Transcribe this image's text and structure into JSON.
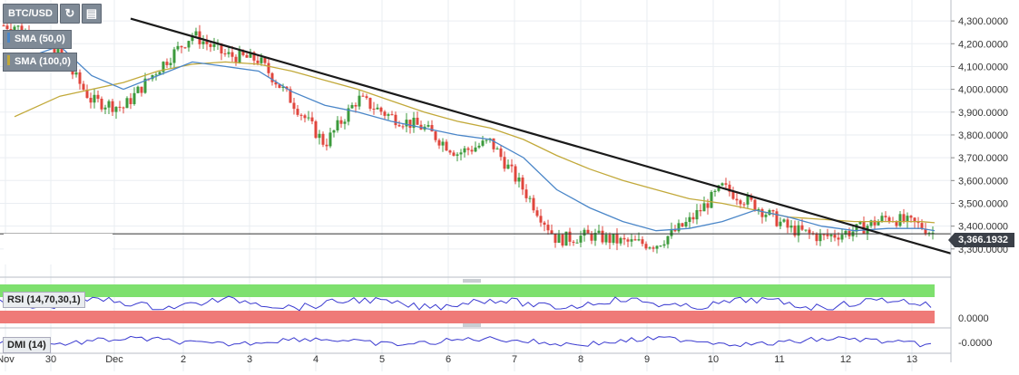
{
  "toolbar": {
    "symbol": "BTC/USD",
    "refresh_icon": "refresh-icon",
    "calendar_icon": "calendar-icon"
  },
  "indicators": {
    "sma50": {
      "label": "SMA (50,0)",
      "color": "#4a86c8"
    },
    "sma100": {
      "label": "SMA (100,0)",
      "color": "#c2a93a"
    }
  },
  "price_label": "3,366.1932",
  "rsi_label": "RSI (14,70,30,1)",
  "dmi_label": "DMI (14)",
  "colors": {
    "up": "#3c9a3c",
    "down": "#e0463d",
    "trendline": "#1a1a1a",
    "rsi_overbought": "#7ee06e",
    "rsi_oversold": "#ef7a78",
    "osc_line": "#3a3ad0"
  },
  "chart_data": {
    "type": "line",
    "title": "BTC/USD",
    "x_tick_labels": [
      "Nov",
      "30",
      "Dec",
      "2",
      "3",
      "4",
      "5",
      "6",
      "7",
      "8",
      "9",
      "10",
      "11",
      "12",
      "13"
    ],
    "y_tick_labels": [
      "4,300.0000",
      "4,200.0000",
      "4,100.0000",
      "4,000.0000",
      "3,900.0000",
      "3,800.0000",
      "3,700.0000",
      "3,600.0000",
      "3,500.0000",
      "3,400.0000",
      "3,300.0000"
    ],
    "ylim": [
      3200,
      4360
    ],
    "current_price": 3366.1932,
    "close_series": [
      [
        "Nov",
        4280
      ],
      [
        "30",
        4150
      ],
      [
        "30",
        3950
      ],
      [
        "Dec",
        3920
      ],
      [
        "Dec",
        4090
      ],
      [
        "2",
        4240
      ],
      [
        "2",
        4150
      ],
      [
        "3",
        4130
      ],
      [
        "3",
        3950
      ],
      [
        "4",
        3760
      ],
      [
        "4",
        3960
      ],
      [
        "5",
        3880
      ],
      [
        "5",
        3830
      ],
      [
        "6",
        3720
      ],
      [
        "6",
        3770
      ],
      [
        "7",
        3560
      ],
      [
        "7",
        3340
      ],
      [
        "8",
        3360
      ],
      [
        "8",
        3330
      ],
      [
        "9",
        3320
      ],
      [
        "9",
        3420
      ],
      [
        "10",
        3570
      ],
      [
        "10",
        3490
      ],
      [
        "11",
        3390
      ],
      [
        "11",
        3350
      ],
      [
        "12",
        3380
      ],
      [
        "12",
        3440
      ],
      [
        "13",
        3400
      ],
      [
        "13",
        3366
      ]
    ],
    "series": [
      {
        "name": "SMA (50,0)",
        "values": [
          4120,
          4190,
          4060,
          4000,
          4060,
          4120,
          4100,
          4080,
          3990,
          3930,
          3900,
          3860,
          3830,
          3800,
          3780,
          3700,
          3560,
          3480,
          3420,
          3380,
          3390,
          3420,
          3470,
          3440,
          3400,
          3380,
          3390,
          3390,
          3380
        ]
      },
      {
        "name": "SMA (100,0)",
        "values": [
          3880,
          3970,
          4000,
          4030,
          4080,
          4110,
          4120,
          4110,
          4080,
          4040,
          4000,
          3950,
          3900,
          3860,
          3830,
          3780,
          3710,
          3650,
          3600,
          3560,
          3520,
          3500,
          3470,
          3440,
          3430,
          3420,
          3420,
          3420,
          3415
        ]
      }
    ],
    "trendline": {
      "start": [
        "30",
        4310
      ],
      "end": [
        "13",
        3280
      ]
    },
    "oscillators": [
      {
        "name": "RSI (14,70,30,1)",
        "tick_labels": []
      },
      {
        "name": "DMI (14)",
        "tick_labels": [
          "0.0000",
          "-0.0000"
        ]
      }
    ]
  }
}
